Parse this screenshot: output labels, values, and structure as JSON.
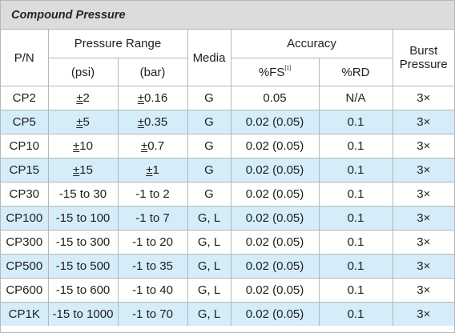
{
  "title": "Compound Pressure",
  "headers": {
    "pn": "P/N",
    "pressure_range": "Pressure Range",
    "psi": "(psi)",
    "bar": "(bar)",
    "media": "Media",
    "accuracy": "Accuracy",
    "fs": "%FS",
    "fs_footnote": "[1]",
    "rd": "%RD",
    "burst_line1": "Burst",
    "burst_line2": "Pressure"
  },
  "rows": [
    {
      "pn": "CP2",
      "pm": "±",
      "psi": "2",
      "bar": "0.16",
      "media": "G",
      "fs": "0.05",
      "rd": "N/A",
      "burst": "3×"
    },
    {
      "pn": "CP5",
      "pm": "±",
      "psi": "5",
      "bar": "0.35",
      "media": "G",
      "fs": "0.02 (0.05)",
      "rd": "0.1",
      "burst": "3×"
    },
    {
      "pn": "CP10",
      "pm": "±",
      "psi": "10",
      "bar": "0.7",
      "media": "G",
      "fs": "0.02 (0.05)",
      "rd": "0.1",
      "burst": "3×"
    },
    {
      "pn": "CP15",
      "pm": "±",
      "psi": "15",
      "bar": "1",
      "media": "G",
      "fs": "0.02 (0.05)",
      "rd": "0.1",
      "burst": "3×"
    },
    {
      "pn": "CP30",
      "pm": "",
      "psi": "-15 to 30",
      "bar": "-1 to 2",
      "media": "G",
      "fs": "0.02 (0.05)",
      "rd": "0.1",
      "burst": "3×"
    },
    {
      "pn": "CP100",
      "pm": "",
      "psi": "-15 to 100",
      "bar": "-1 to 7",
      "media": "G, L",
      "fs": "0.02 (0.05)",
      "rd": "0.1",
      "burst": "3×"
    },
    {
      "pn": "CP300",
      "pm": "",
      "psi": "-15 to 300",
      "bar": "-1 to 20",
      "media": "G, L",
      "fs": "0.02 (0.05)",
      "rd": "0.1",
      "burst": "3×"
    },
    {
      "pn": "CP500",
      "pm": "",
      "psi": "-15 to 500",
      "bar": "-1 to 35",
      "media": "G, L",
      "fs": "0.02 (0.05)",
      "rd": "0.1",
      "burst": "3×"
    },
    {
      "pn": "CP600",
      "pm": "",
      "psi": "-15 to 600",
      "bar": "-1 to 40",
      "media": "G, L",
      "fs": "0.02 (0.05)",
      "rd": "0.1",
      "burst": "3×"
    },
    {
      "pn": "CP1K",
      "pm": "",
      "psi": "-15 to 1000",
      "bar": "-1 to 70",
      "media": "G, L",
      "fs": "0.02 (0.05)",
      "rd": "0.1",
      "burst": "3×"
    }
  ],
  "colors": {
    "header_background": "#dcdcdc",
    "alternate_row_background": "#d5ecf9",
    "grid_line": "#b7b7b7"
  }
}
